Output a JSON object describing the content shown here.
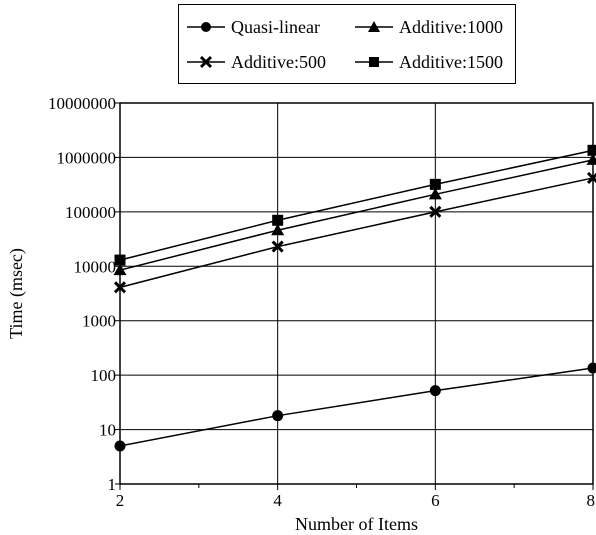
{
  "chart_data": {
    "type": "line",
    "title": "",
    "xlabel": "Number of Items",
    "ylabel": "Time (msec)",
    "x": [
      2,
      4,
      6,
      8
    ],
    "xlim": [
      2,
      8
    ],
    "x_ticks": [
      "2",
      "4",
      "6",
      "8"
    ],
    "y_scale": "log",
    "ylim": [
      1,
      10000000
    ],
    "y_ticks": [
      "1",
      "10",
      "100",
      "1000",
      "10000",
      "100000",
      "1000000",
      "10000000"
    ],
    "grid": true,
    "legend_position": "top",
    "series": [
      {
        "name": "Quasi-linear",
        "marker": "circle",
        "values": [
          5,
          18,
          52,
          135
        ]
      },
      {
        "name": "Additive:1000",
        "marker": "triangle",
        "values": [
          8500,
          46000,
          210000,
          900000
        ]
      },
      {
        "name": "Additive:500",
        "marker": "x",
        "values": [
          4100,
          23000,
          100000,
          420000
        ]
      },
      {
        "name": "Additive:1500",
        "marker": "square",
        "values": [
          13000,
          70000,
          320000,
          1350000
        ]
      }
    ]
  }
}
